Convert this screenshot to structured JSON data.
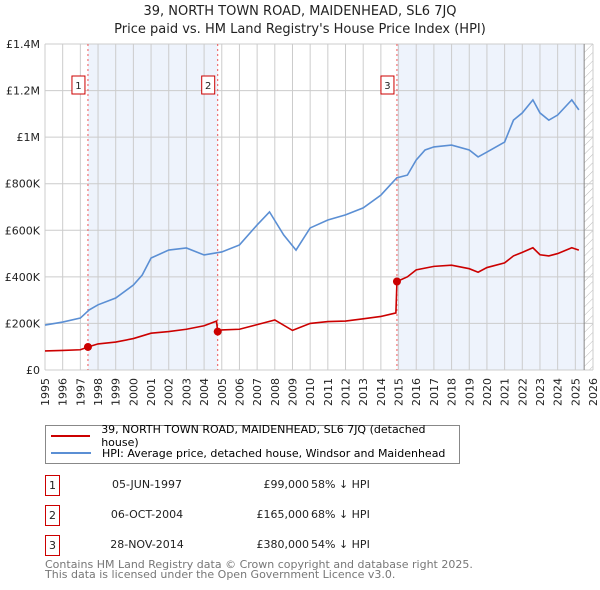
{
  "header": {
    "title": "39, NORTH TOWN ROAD, MAIDENHEAD, SL6 7JQ",
    "subtitle": "Price paid vs. HM Land Registry's House Price Index (HPI)"
  },
  "chart_data": {
    "type": "line",
    "title": "39, NORTH TOWN ROAD, MAIDENHEAD, SL6 7JQ",
    "subtitle": "Price paid vs. HM Land Registry's House Price Index (HPI)",
    "xlim": [
      1995,
      2026
    ],
    "ylim": [
      0,
      1400000
    ],
    "x_ticks": [
      "1995",
      "1996",
      "1997",
      "1998",
      "1999",
      "2000",
      "2001",
      "2002",
      "2003",
      "2004",
      "2005",
      "2006",
      "2007",
      "2008",
      "2009",
      "2010",
      "2011",
      "2012",
      "2013",
      "2014",
      "2015",
      "2016",
      "2017",
      "2018",
      "2019",
      "2020",
      "2021",
      "2022",
      "2023",
      "2024",
      "2025",
      "2026"
    ],
    "y_ticks": [
      {
        "v": 0,
        "label": "£0"
      },
      {
        "v": 200000,
        "label": "£200K"
      },
      {
        "v": 400000,
        "label": "£400K"
      },
      {
        "v": 600000,
        "label": "£600K"
      },
      {
        "v": 800000,
        "label": "£800K"
      },
      {
        "v": 1000000,
        "label": "£1M"
      },
      {
        "v": 1200000,
        "label": "£1.2M"
      },
      {
        "v": 1400000,
        "label": "£1.4M"
      }
    ],
    "grid": true,
    "shaded_ranges": [
      [
        1997.43,
        2004.77
      ],
      [
        2014.91,
        2025.5
      ]
    ],
    "hatched_from": 2025.5,
    "series": [
      {
        "name": "39, NORTH TOWN ROAD, MAIDENHEAD, SL6 7JQ (detached house)",
        "color": "#cc0000",
        "x": [
          1995,
          1996,
          1997,
          1997.43,
          1998,
          1999,
          2000,
          2001,
          2002,
          2003,
          2004,
          2004.7,
          2004.77,
          2005,
          2006,
          2007,
          2008,
          2009,
          2010,
          2011,
          2012,
          2013,
          2014,
          2014.85,
          2014.91,
          2015.5,
          2016,
          2017,
          2018,
          2019,
          2019.5,
          2020,
          2021,
          2021.5,
          2022,
          2022.6,
          2023,
          2023.5,
          2024,
          2024.8,
          2025.2
        ],
        "y": [
          82000,
          84000,
          87000,
          99000,
          112000,
          120000,
          135000,
          158000,
          165000,
          175000,
          190000,
          210000,
          165000,
          172000,
          175000,
          195000,
          215000,
          170000,
          200000,
          208000,
          210000,
          220000,
          230000,
          245000,
          380000,
          400000,
          430000,
          445000,
          450000,
          435000,
          420000,
          440000,
          460000,
          490000,
          505000,
          525000,
          495000,
          490000,
          500000,
          525000,
          515000
        ]
      },
      {
        "name": "HPI: Average price, detached house, Windsor and Maidenhead",
        "color": "#5b8fd4",
        "x": [
          1995,
          1996,
          1997,
          1997.5,
          1998,
          1999,
          2000,
          2000.5,
          2001,
          2002,
          2003,
          2004,
          2005,
          2006,
          2007,
          2007.7,
          2008.5,
          2009.2,
          2010,
          2011,
          2012,
          2013,
          2014,
          2014.9,
          2015.5,
          2016,
          2016.5,
          2017,
          2018,
          2019,
          2019.5,
          2020,
          2021,
          2021.5,
          2022,
          2022.6,
          2023,
          2023.5,
          2024,
          2024.8,
          2025.2
        ],
        "y": [
          193000,
          206000,
          223000,
          258000,
          280000,
          309000,
          365000,
          408000,
          481000,
          515000,
          524000,
          494000,
          507000,
          537000,
          623000,
          679000,
          580000,
          515000,
          610000,
          644000,
          666000,
          696000,
          751000,
          825000,
          837000,
          902000,
          945000,
          958000,
          966000,
          945000,
          915000,
          936000,
          979000,
          1073000,
          1104000,
          1160000,
          1104000,
          1073000,
          1095000,
          1160000,
          1117000
        ]
      }
    ],
    "sales": [
      {
        "id": "1",
        "x": 1997.43,
        "y": 99000
      },
      {
        "id": "2",
        "x": 2004.77,
        "y": 165000
      },
      {
        "id": "3",
        "x": 2014.91,
        "y": 380000
      }
    ],
    "legend_placement": "below"
  },
  "legend": {
    "items": [
      {
        "label": "39, NORTH TOWN ROAD, MAIDENHEAD, SL6 7JQ (detached house)",
        "color": "#cc0000"
      },
      {
        "label": "HPI: Average price, detached house, Windsor and Maidenhead",
        "color": "#5b8fd4"
      }
    ]
  },
  "transactions": [
    {
      "id": "1",
      "date": "05-JUN-1997",
      "price": "£99,000",
      "hpi": "58% ↓ HPI"
    },
    {
      "id": "2",
      "date": "06-OCT-2004",
      "price": "£165,000",
      "hpi": "68% ↓ HPI"
    },
    {
      "id": "3",
      "date": "28-NOV-2014",
      "price": "£380,000",
      "hpi": "54% ↓ HPI"
    }
  ],
  "footer": {
    "line1": "Contains HM Land Registry data © Crown copyright and database right 2025.",
    "line2": "This data is licensed under the Open Government Licence v3.0."
  }
}
